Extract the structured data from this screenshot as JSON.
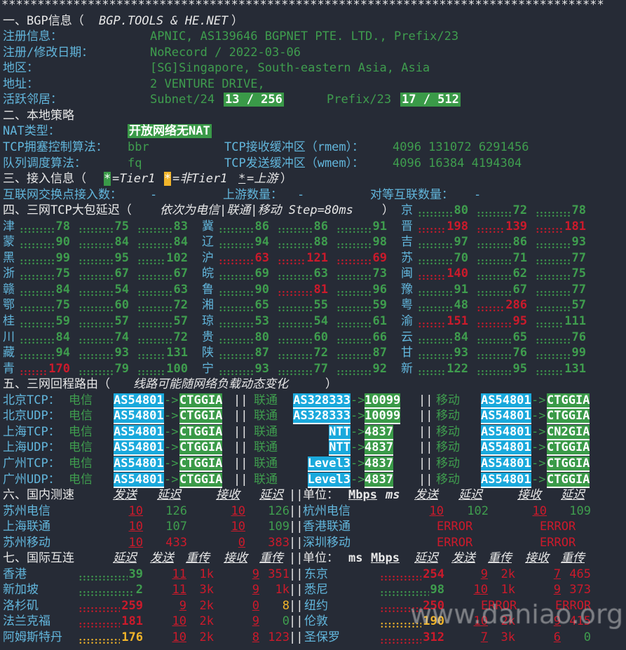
{
  "stars": "************************************************************************************",
  "bgp": {
    "title_prefix": "一、BGP信息（",
    "title_italic": "BGP.TOOLS & HE.NET",
    "title_suffix": "）",
    "rows": [
      {
        "label": "注册信息：",
        "value": "APNIC, AS139646 BGPNET PTE. LTD., Prefix/23"
      },
      {
        "label": "注册/修改日期：",
        "value": "NoRecord / 2022-03-06"
      },
      {
        "label": "地区：",
        "value": "[SG]Singapore, South-eastern Asia, Asia"
      },
      {
        "label": "地址：",
        "value": "2 VENTURE DRIVE,"
      }
    ],
    "neighbors": {
      "label": "活跃邻居：",
      "subnet_label": "Subnet/24",
      "subnet_value": "13 / 256",
      "prefix_label": "Prefix/23",
      "prefix_value": "17 / 512"
    }
  },
  "local": {
    "title": "二、本地策略",
    "nat_label": "NAT类型：",
    "nat_value": "开放网络无NAT",
    "cc_label": "TCP拥塞控制算法：",
    "cc_value": "bbr",
    "rmem_label": "TCP接收缓冲区（rmem）：",
    "rmem_value": "4096 131072 6291456",
    "qdisc_label": "队列调度算法：",
    "qdisc_value": "fq",
    "wmem_label": "TCP发送缓冲区（wmem）：",
    "wmem_value": "4096 16384 4194304"
  },
  "access": {
    "title": "三、接入信息（",
    "star": "*",
    "tier1": "=Tier1 ",
    "non_tier1": "=非Tier1 ",
    "upstream_mark": "=上游",
    "close": "）",
    "ix_label": "互联网交换点接入数：",
    "ix_value": "-",
    "up_label": "上游数量：",
    "up_value": "-",
    "peer_label": "对等互联数量：",
    "peer_value": "-"
  },
  "latency": {
    "title_prefix": "四、三网TCP大包延迟（",
    "title_italic": "依次为电信|联通|移动 Step=80ms",
    "title_suffix": "）",
    "top": {
      "name": "京",
      "values": [
        [
          "80",
          "g"
        ],
        [
          "72",
          "g"
        ],
        [
          "78",
          "g"
        ]
      ]
    },
    "columns": [
      [
        {
          "name": "津",
          "values": [
            [
              "78",
              "g"
            ],
            [
              "75",
              "g"
            ],
            [
              "83",
              "g"
            ]
          ]
        },
        {
          "name": "蒙",
          "values": [
            [
              "90",
              "g"
            ],
            [
              "84",
              "g"
            ],
            [
              "84",
              "g"
            ]
          ]
        },
        {
          "name": "黑",
          "values": [
            [
              "99",
              "g"
            ],
            [
              "95",
              "g"
            ],
            [
              "102",
              "g"
            ]
          ]
        },
        {
          "name": "浙",
          "values": [
            [
              "75",
              "g"
            ],
            [
              "67",
              "g"
            ],
            [
              "67",
              "g"
            ]
          ]
        },
        {
          "name": "赣",
          "values": [
            [
              "84",
              "g"
            ],
            [
              "54",
              "g"
            ],
            [
              "63",
              "g"
            ]
          ]
        },
        {
          "name": "鄂",
          "values": [
            [
              "75",
              "g"
            ],
            [
              "60",
              "g"
            ],
            [
              "72",
              "g"
            ]
          ]
        },
        {
          "name": "桂",
          "values": [
            [
              "59",
              "g"
            ],
            [
              "57",
              "g"
            ],
            [
              "57",
              "g"
            ]
          ]
        },
        {
          "name": "川",
          "values": [
            [
              "84",
              "g"
            ],
            [
              "74",
              "g"
            ],
            [
              "72",
              "g"
            ]
          ]
        },
        {
          "name": "藏",
          "values": [
            [
              "94",
              "g"
            ],
            [
              "93",
              "g"
            ],
            [
              "131",
              "g"
            ]
          ]
        },
        {
          "name": "青",
          "values": [
            [
              "170",
              "r"
            ],
            [
              "79",
              "g"
            ],
            [
              "100",
              "g"
            ]
          ]
        }
      ],
      [
        {
          "name": "冀",
          "values": [
            [
              "86",
              "g"
            ],
            [
              "86",
              "g"
            ],
            [
              "91",
              "g"
            ]
          ]
        },
        {
          "name": "辽",
          "values": [
            [
              "94",
              "g"
            ],
            [
              "88",
              "g"
            ],
            [
              "98",
              "g"
            ]
          ]
        },
        {
          "name": "沪",
          "values": [
            [
              "63",
              "r"
            ],
            [
              "121",
              "r"
            ],
            [
              "69",
              "r"
            ]
          ]
        },
        {
          "name": "皖",
          "values": [
            [
              "69",
              "g"
            ],
            [
              "63",
              "g"
            ],
            [
              "73",
              "g"
            ]
          ]
        },
        {
          "name": "鲁",
          "values": [
            [
              "90",
              "g"
            ],
            [
              "81",
              "r"
            ],
            [
              "96",
              "g"
            ]
          ]
        },
        {
          "name": "湘",
          "values": [
            [
              "65",
              "g"
            ],
            [
              "55",
              "g"
            ],
            [
              "59",
              "g"
            ]
          ]
        },
        {
          "name": "琼",
          "values": [
            [
              "53",
              "g"
            ],
            [
              "54",
              "g"
            ],
            [
              "61",
              "g"
            ]
          ]
        },
        {
          "name": "贵",
          "values": [
            [
              "80",
              "g"
            ],
            [
              "60",
              "g"
            ],
            [
              "66",
              "g"
            ]
          ]
        },
        {
          "name": "陕",
          "values": [
            [
              "87",
              "g"
            ],
            [
              "72",
              "g"
            ],
            [
              "87",
              "g"
            ]
          ]
        },
        {
          "name": "宁",
          "values": [
            [
              "93",
              "g"
            ],
            [
              "77",
              "g"
            ],
            [
              "92",
              "g"
            ]
          ]
        }
      ],
      [
        {
          "name": "晋",
          "values": [
            [
              "198",
              "r"
            ],
            [
              "139",
              "r"
            ],
            [
              "181",
              "r"
            ]
          ]
        },
        {
          "name": "吉",
          "values": [
            [
              "97",
              "g"
            ],
            [
              "86",
              "g"
            ],
            [
              "93",
              "g"
            ]
          ]
        },
        {
          "name": "苏",
          "values": [
            [
              "70",
              "g"
            ],
            [
              "71",
              "g"
            ],
            [
              "77",
              "g"
            ]
          ]
        },
        {
          "name": "闽",
          "values": [
            [
              "140",
              "r"
            ],
            [
              "62",
              "g"
            ],
            [
              "75",
              "g"
            ]
          ]
        },
        {
          "name": "豫",
          "values": [
            [
              "91",
              "g"
            ],
            [
              "67",
              "g"
            ],
            [
              "77",
              "g"
            ]
          ]
        },
        {
          "name": "粤",
          "values": [
            [
              "48",
              "g"
            ],
            [
              "286",
              "r"
            ],
            [
              "57",
              "g"
            ]
          ]
        },
        {
          "name": "渝",
          "values": [
            [
              "151",
              "r"
            ],
            [
              "95",
              "r"
            ],
            [
              "111",
              "g"
            ]
          ]
        },
        {
          "name": "云",
          "values": [
            [
              "84",
              "g"
            ],
            [
              "65",
              "g"
            ],
            [
              "76",
              "g"
            ]
          ]
        },
        {
          "name": "甘",
          "values": [
            [
              "93",
              "g"
            ],
            [
              "76",
              "g"
            ],
            [
              "99",
              "g"
            ]
          ]
        },
        {
          "name": "新",
          "values": [
            [
              "122",
              "g"
            ],
            [
              "95",
              "g"
            ],
            [
              "131",
              "g"
            ]
          ]
        }
      ]
    ]
  },
  "routes": {
    "title_prefix": "五、三网回程路由（",
    "title_italic": "线路可能随网络负载动态变化",
    "title_suffix": "）",
    "sep": "||",
    "arrow": "->",
    "carriers": [
      "电信",
      "联通",
      "移动"
    ],
    "rows": [
      {
        "label": "北京TCP：",
        "hops": [
          [
            "AS54801",
            "CTGGIA"
          ],
          [
            "AS328333",
            "10099"
          ],
          [
            "AS54801",
            "CTGGIA"
          ]
        ]
      },
      {
        "label": "北京UDP：",
        "hops": [
          [
            "AS54801",
            "CTGGIA"
          ],
          [
            "AS328333",
            "10099"
          ],
          [
            "AS54801",
            "CTGGIA"
          ]
        ]
      },
      {
        "label": "上海TCP：",
        "hops": [
          [
            "AS54801",
            "CTGGIA"
          ],
          [
            "NTT",
            "4837"
          ],
          [
            "AS54801",
            "CN2GIA"
          ]
        ]
      },
      {
        "label": "上海UDP：",
        "hops": [
          [
            "AS54801",
            "CTGGIA"
          ],
          [
            "NTT",
            "4837"
          ],
          [
            "AS54801",
            "CTGGIA"
          ]
        ]
      },
      {
        "label": "广州TCP：",
        "hops": [
          [
            "AS54801",
            "CTGGIA"
          ],
          [
            "Level3",
            "4837"
          ],
          [
            "AS54801",
            "CTGGIA"
          ]
        ]
      },
      {
        "label": "广州UDP：",
        "hops": [
          [
            "AS54801",
            "CTGGIA"
          ],
          [
            "Level3",
            "4837"
          ],
          [
            "AS54801",
            "CTGGIA"
          ]
        ]
      }
    ]
  },
  "domestic": {
    "title": "六、国内测速",
    "headers": [
      "发送",
      "延迟",
      "接收",
      "延迟"
    ],
    "unit_label": "单位：",
    "unit_mbps": "Mbps",
    "unit_ms": "ms",
    "rows": [
      {
        "left": {
          "name": "苏州电信",
          "send": "10",
          "lat1": "126",
          "lat1c": "g",
          "recv": "10",
          "lat2": "126",
          "lat2c": "g"
        },
        "right": {
          "name": "杭州电信",
          "send": "10",
          "lat1": "102",
          "recv": "10",
          "lat2": "109"
        }
      },
      {
        "left": {
          "name": "上海联通",
          "send": "10",
          "lat1": "107",
          "lat1c": "g",
          "recv": "10",
          "lat2": "109",
          "lat2c": "g"
        },
        "right": {
          "name": "香港联通",
          "error1": "ERROR",
          "error2": "ERROR"
        }
      },
      {
        "left": {
          "name": "苏州移动",
          "send": "10",
          "lat1": "433",
          "lat1c": "r",
          "recv": "0",
          "lat2": "383",
          "lat2c": "r"
        },
        "right": {
          "name": "深圳移动",
          "error1": "ERROR",
          "error2": "ERROR"
        }
      }
    ]
  },
  "international": {
    "title": "七、国际互连",
    "headers": [
      "延迟",
      "发送",
      "重传",
      "接收",
      "重传"
    ],
    "unit_label": "单位：",
    "unit_ms": "ms",
    "unit_mbps": "Mbps",
    "left": [
      {
        "name": "香港",
        "lat": "39",
        "latc": "g",
        "send": "11",
        "retr1": "1k",
        "recv": "9",
        "retr2": "351",
        "retr2c": "r"
      },
      {
        "name": "新加坡",
        "lat": "2",
        "latc": "g",
        "send": "11",
        "retr1": "3k",
        "recv": "9",
        "retr2": "1k",
        "retr2c": "r"
      },
      {
        "name": "洛杉矶",
        "lat": "259",
        "latc": "r",
        "send": "9",
        "retr1": "2k",
        "recv": "0",
        "retr2": "8",
        "retr2c": "y"
      },
      {
        "name": "法兰克福",
        "lat": "181",
        "latc": "r",
        "send": "10",
        "retr1": "2k",
        "recv": "9",
        "retr2": "0",
        "retr2c": "g"
      },
      {
        "name": "阿姆斯特丹",
        "lat": "176",
        "latc": "y",
        "send": "10",
        "retr1": "2k",
        "recv": "8",
        "retr2": "123",
        "retr2c": "r"
      }
    ],
    "right": [
      {
        "name": "东京",
        "lat": "254",
        "latc": "r",
        "send": "9",
        "retr1": "2k",
        "recv": "7",
        "retr2": "465",
        "retr2c": "r"
      },
      {
        "name": "悉尼",
        "lat": "98",
        "latc": "g",
        "send": "10",
        "retr1": "1k",
        "recv": "9",
        "retr2": "373",
        "retr2c": "r"
      },
      {
        "name": "纽约",
        "lat": "250",
        "latc": "r",
        "error1": "ERROR",
        "error2": "ERROR"
      },
      {
        "name": "伦敦",
        "lat": "190",
        "latc": "y",
        "send": "10",
        "retr1": "2k",
        "recv": "9",
        "retr2": "415",
        "retr2c": "r"
      },
      {
        "name": "圣保罗",
        "lat": "312",
        "latc": "r",
        "send": "7",
        "retr1": "3k",
        "recv": "6",
        "retr2": "0",
        "retr2c": "g"
      }
    ]
  },
  "watermark": "www.daniao.org",
  "colors": {
    "background": "#262b36",
    "label": "#62b6dc",
    "good": "#3f9d4e",
    "bad": "#cc1a2b",
    "warn": "#f2b52a",
    "as_box": "#1aa9dc",
    "carrier_box": "#3a9a48"
  }
}
